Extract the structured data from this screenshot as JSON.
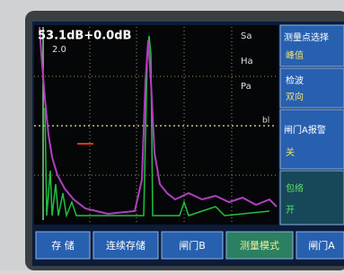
{
  "header": {
    "gain": "53.1dB+0.0dB",
    "range": "2.0"
  },
  "readouts": [
    "Sa",
    "Ha",
    "Pa"
  ],
  "marker": "bl",
  "menu": [
    {
      "title": "测量点选择",
      "value": "峰值"
    },
    {
      "title": "检波",
      "value": "双向"
    },
    {
      "title": "闸门A报警",
      "value": "关"
    },
    {
      "title": "包络",
      "value": "开"
    }
  ],
  "buttons": [
    "存 储",
    "连续存储",
    "闸门B",
    "测量模式",
    "闸门A"
  ]
}
